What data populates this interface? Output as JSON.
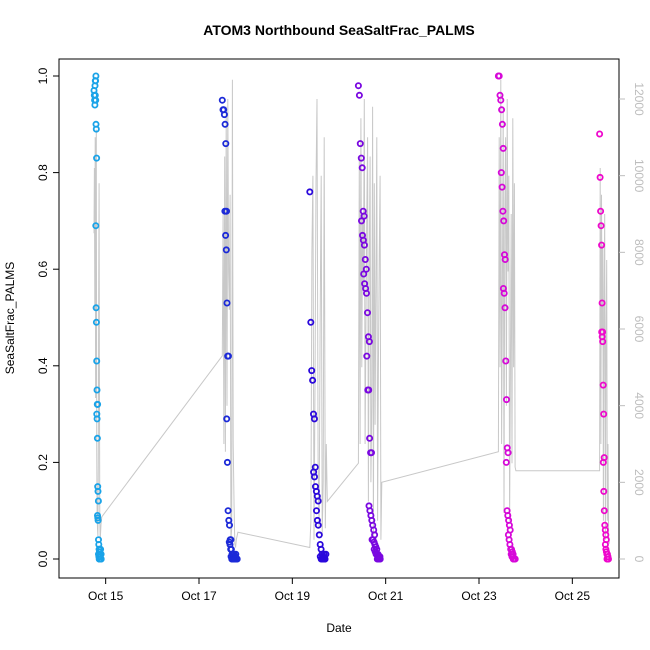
{
  "chart_data": {
    "type": "scatter",
    "title": "ATOM3 Northbound SeaSaltFrac_PALMS",
    "xlabel": "Date",
    "ylabel": "SeaSaltFrac_PALMS",
    "ylim": [
      0,
      1
    ],
    "y_ticks": [
      "0.0",
      "0.2",
      "0.4",
      "0.6",
      "0.8",
      "1.0"
    ],
    "y2lim": [
      0,
      12600
    ],
    "y2_ticks": [
      "0",
      "2000",
      "4000",
      "6000",
      "8000",
      "10000",
      "12000"
    ],
    "xlim": [
      "2017-10-14T00:00",
      "2017-10-26T00:00"
    ],
    "x_ticks": [
      {
        "label": "Oct 15",
        "date": "2017-10-15"
      },
      {
        "label": "Oct 17",
        "date": "2017-10-17"
      },
      {
        "label": "Oct 19",
        "date": "2017-10-19"
      },
      {
        "label": "Oct 21",
        "date": "2017-10-21"
      },
      {
        "label": "Oct 23",
        "date": "2017-10-23"
      },
      {
        "label": "Oct 25",
        "date": "2017-10-25"
      }
    ],
    "grid": false,
    "colors": {
      "altitude_line": "#c8c8c8",
      "flight_colors": [
        "#1aa3e8",
        "#1c2ad8",
        "#2a08dc",
        "#7a08e0",
        "#d608d8",
        "#ee08cc"
      ]
    },
    "flights": [
      {
        "start": "2017-10-14T18:00",
        "end": "2017-10-14T22:00",
        "sea_salt_frac": [
          0.97,
          0.96,
          0.95,
          0.94,
          0.96,
          0.99,
          1.0,
          0.98,
          0.99,
          0.95,
          0.9,
          0.89,
          0.83,
          0.69,
          0.52,
          0.49,
          0.41,
          0.35,
          0.32,
          0.32,
          0.3,
          0.29,
          0.25,
          0.15,
          0.14,
          0.12,
          0.09,
          0.085,
          0.08,
          0.04,
          0.03,
          0.02,
          0.015,
          0.01,
          0.005,
          0.0,
          0.0,
          0.0,
          0.01,
          0.02,
          0.0,
          0.005,
          0.01,
          0.0,
          0.0,
          0.01,
          0.0,
          0.02,
          0.0,
          0.0
        ],
        "altitude": [
          8500,
          10200,
          6500,
          11000,
          4200,
          9300,
          11200,
          3000,
          1200,
          800,
          600,
          2500,
          7000,
          9800,
          5000,
          1000,
          500,
          700,
          900,
          1000,
          1100
        ]
      },
      {
        "start": "2017-10-17T12:00",
        "end": "2017-10-17T20:00",
        "sea_salt_frac": [
          0.95,
          0.93,
          0.93,
          0.92,
          0.9,
          0.86,
          0.72,
          0.72,
          0.67,
          0.64,
          0.53,
          0.42,
          0.42,
          0.29,
          0.2,
          0.1,
          0.08,
          0.07,
          0.04,
          0.04,
          0.035,
          0.03,
          0.02,
          0.02,
          0.01,
          0.01,
          0.005,
          0.0,
          0.0,
          0.0,
          0.01,
          0.0,
          0.005,
          0.0,
          0.0,
          0.0,
          0.01,
          0.0,
          0.0,
          0.0
        ],
        "altitude": [
          5300,
          9000,
          3000,
          10500,
          2800,
          11800,
          4000,
          12000,
          7500,
          6500,
          9500,
          500,
          800,
          12500,
          3000,
          1500,
          400,
          300,
          500,
          600,
          700
        ]
      },
      {
        "start": "2017-10-19T09:00",
        "end": "2017-10-19T18:00",
        "sea_salt_frac": [
          0.76,
          0.49,
          0.39,
          0.37,
          0.3,
          0.29,
          0.19,
          0.18,
          0.17,
          0.15,
          0.14,
          0.13,
          0.12,
          0.1,
          0.08,
          0.07,
          0.05,
          0.03,
          0.02,
          0.01,
          0.005,
          0.0,
          0.0,
          0.0,
          0.01,
          0.0,
          0.005,
          0.0,
          0.0,
          0.01
        ],
        "altitude": [
          300,
          1000,
          8000,
          10000,
          500,
          4500,
          9800,
          12000,
          2500,
          800,
          6000,
          10000,
          600,
          2000,
          11000,
          800,
          3000,
          1500
        ]
      },
      {
        "start": "2017-10-20T10:00",
        "end": "2017-10-20T22:00",
        "sea_salt_frac": [
          0.98,
          0.96,
          0.86,
          0.83,
          0.81,
          0.72,
          0.71,
          0.7,
          0.67,
          0.66,
          0.65,
          0.62,
          0.6,
          0.59,
          0.57,
          0.56,
          0.55,
          0.51,
          0.46,
          0.45,
          0.42,
          0.35,
          0.35,
          0.25,
          0.22,
          0.22,
          0.11,
          0.1,
          0.09,
          0.08,
          0.07,
          0.06,
          0.05,
          0.04,
          0.04,
          0.035,
          0.03,
          0.025,
          0.02,
          0.02,
          0.015,
          0.01,
          0.01,
          0.01,
          0.005,
          0.005,
          0.0,
          0.0,
          0.0,
          0.0
        ],
        "altitude": [
          2500,
          10500,
          3000,
          11500,
          5000,
          9000,
          7000,
          12000,
          3000,
          6000,
          9000,
          11000,
          1500,
          8000,
          10500,
          2000,
          4000,
          11800,
          600,
          9800,
          3500,
          7000,
          11000,
          1000,
          5000,
          8000,
          10000,
          500,
          2000
        ]
      },
      {
        "start": "2017-10-23T10:00",
        "end": "2017-10-23T19:00",
        "sea_salt_frac": [
          1.0,
          1.0,
          0.96,
          0.95,
          0.93,
          0.9,
          0.85,
          0.8,
          0.77,
          0.72,
          0.7,
          0.63,
          0.62,
          0.56,
          0.55,
          0.52,
          0.41,
          0.33,
          0.23,
          0.22,
          0.2,
          0.1,
          0.09,
          0.08,
          0.07,
          0.06,
          0.05,
          0.04,
          0.03,
          0.02,
          0.02,
          0.015,
          0.01,
          0.01,
          0.005,
          0.005,
          0.0,
          0.0,
          0.0,
          0.0
        ],
        "altitude": [
          2800,
          11000,
          5000,
          12500,
          3000,
          7000,
          11800,
          1200,
          9000,
          11000,
          4000,
          12000,
          7500,
          10000,
          1000,
          4800,
          9000,
          2500,
          11500,
          5000,
          9800,
          2400,
          2300
        ]
      },
      {
        "start": "2017-10-25T14:00",
        "end": "2017-10-25T19:00",
        "sea_salt_frac": [
          0.88,
          0.79,
          0.72,
          0.69,
          0.65,
          0.53,
          0.47,
          0.47,
          0.46,
          0.45,
          0.36,
          0.3,
          0.21,
          0.2,
          0.14,
          0.1,
          0.07,
          0.06,
          0.05,
          0.04,
          0.03,
          0.02,
          0.015,
          0.01,
          0.01,
          0.005,
          0.0,
          0.0,
          0.0,
          0.0
        ],
        "altitude": [
          2300,
          10200,
          3000,
          9500,
          6000,
          8200,
          1000,
          7000,
          9000,
          500,
          5500,
          7800,
          1000,
          3000,
          600,
          400
        ]
      }
    ]
  }
}
